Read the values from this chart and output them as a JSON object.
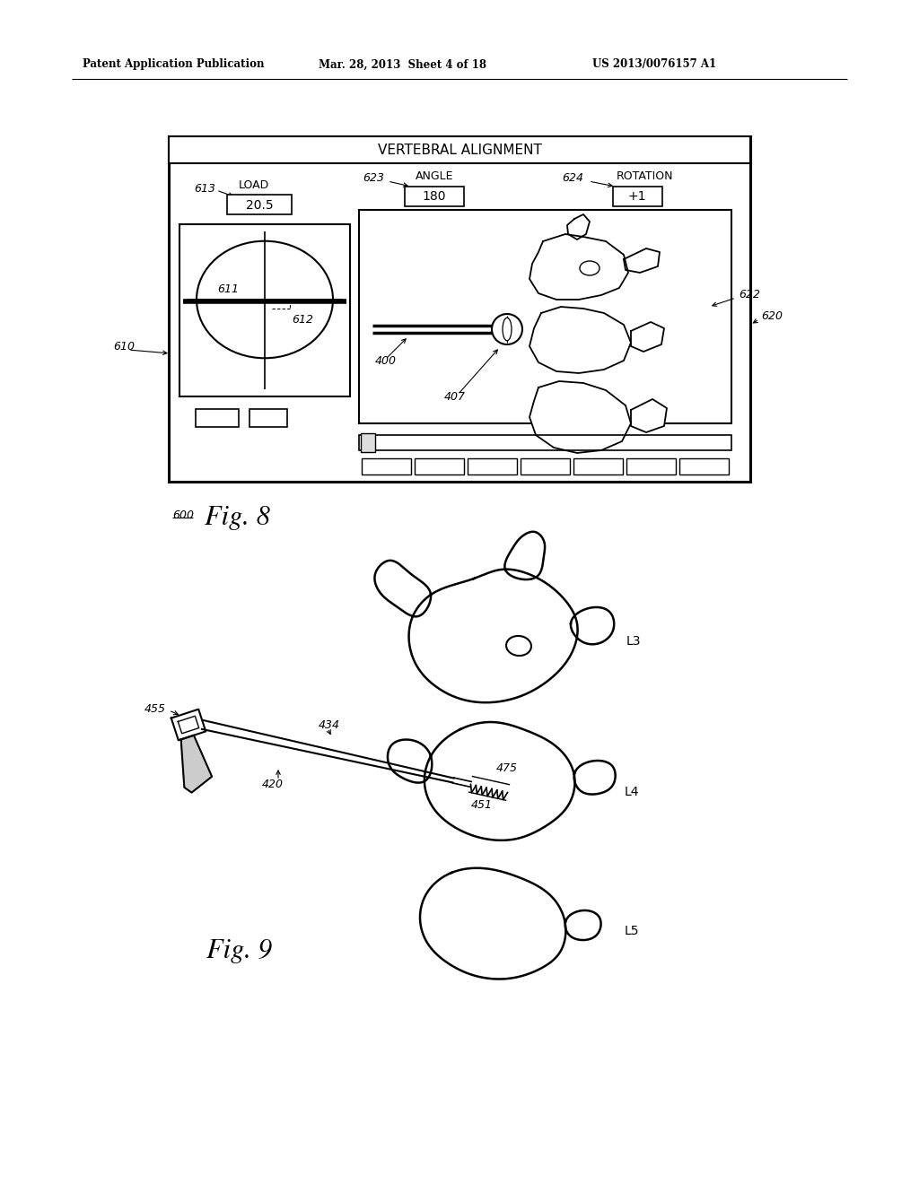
{
  "bg_color": "#ffffff",
  "header_text": "Patent Application Publication",
  "header_date": "Mar. 28, 2013  Sheet 4 of 18",
  "header_patent": "US 2013/0076157 A1",
  "fig8_label": "600",
  "fig8_caption": "Fig. 8",
  "fig9_caption": "Fig. 9",
  "screen_title": "VERTEBRAL ALIGNMENT",
  "load_label": "613",
  "load_text": "LOAD",
  "load_value": "20.5",
  "angle_label": "623",
  "angle_text": "ANGLE",
  "angle_value": "180",
  "rotation_label": "624",
  "rotation_text": "ROTATION",
  "rotation_value": "+1",
  "ref_610": "610",
  "ref_611": "611",
  "ref_612": "612",
  "ref_620": "620",
  "ref_622": "622",
  "ref_400": "400",
  "ref_407": "407",
  "ref_455": "455",
  "ref_434": "434",
  "ref_420": "420",
  "ref_451": "451",
  "ref_475": "475",
  "ref_L3": "L3",
  "ref_L4": "L4",
  "ref_L5": "L5"
}
